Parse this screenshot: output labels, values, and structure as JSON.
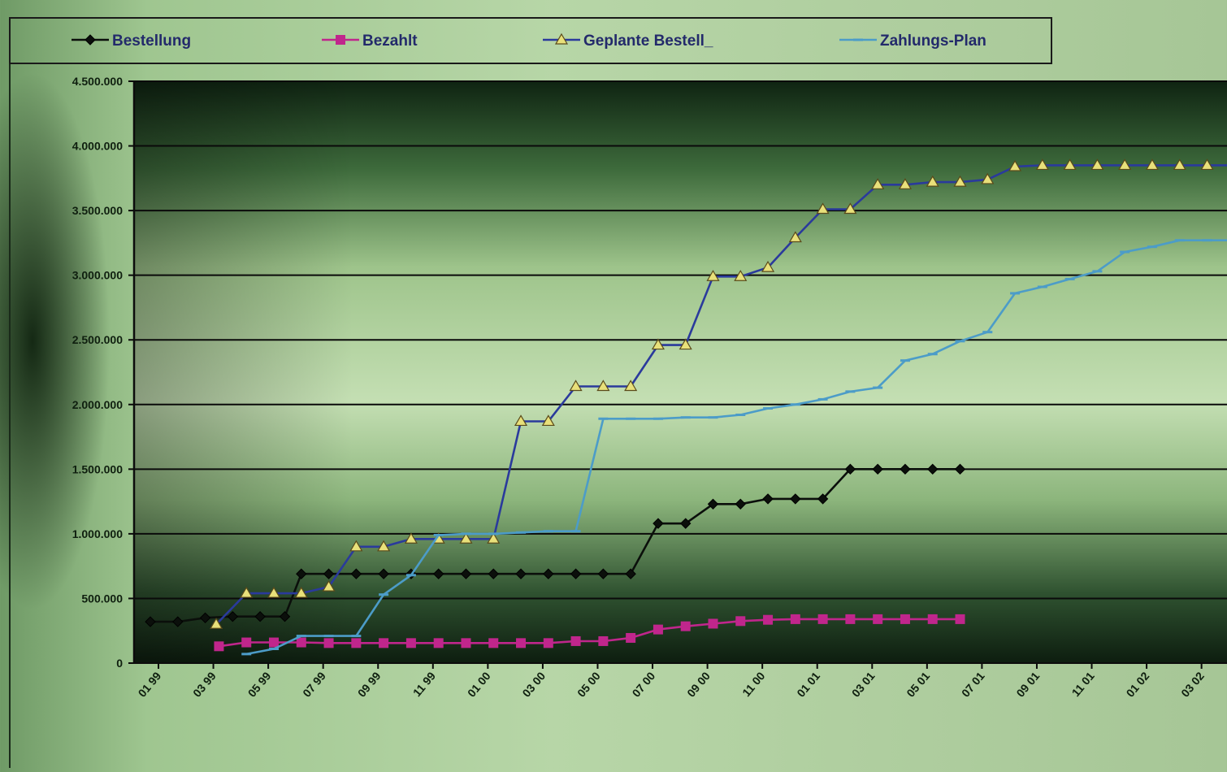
{
  "chart_data": {
    "type": "line",
    "legend_position": "top",
    "grid": true,
    "ylim": [
      0,
      4500000
    ],
    "y_ticks": [
      "0",
      "500.000",
      "1.000.000",
      "1.500.000",
      "2.000.000",
      "2.500.000",
      "3.000.000",
      "3.500.000",
      "4.000.000",
      "4.500.000"
    ],
    "x_ticks": [
      {
        "i": 0,
        "label": "01 99"
      },
      {
        "i": 2,
        "label": "03 99"
      },
      {
        "i": 4,
        "label": "05 99"
      },
      {
        "i": 6,
        "label": "07 99"
      },
      {
        "i": 8,
        "label": "09 99"
      },
      {
        "i": 10,
        "label": "11 99"
      },
      {
        "i": 12,
        "label": "01 00"
      },
      {
        "i": 14,
        "label": "03 00"
      },
      {
        "i": 16,
        "label": "05 00"
      },
      {
        "i": 18,
        "label": "07 00"
      },
      {
        "i": 20,
        "label": "09 00"
      },
      {
        "i": 22,
        "label": "11 00"
      },
      {
        "i": 24,
        "label": "01 01"
      },
      {
        "i": 26,
        "label": "03 01"
      },
      {
        "i": 28,
        "label": "05 01"
      },
      {
        "i": 30,
        "label": "07 01"
      },
      {
        "i": 32,
        "label": "09 01"
      },
      {
        "i": 34,
        "label": "11 01"
      },
      {
        "i": 36,
        "label": "01 02"
      },
      {
        "i": 38,
        "label": "03 02"
      }
    ],
    "series": [
      {
        "name": "Bestellung",
        "color": "#0b0f0b",
        "marker": "diamond",
        "points": [
          [
            0,
            320000
          ],
          [
            1,
            320000
          ],
          [
            2,
            350000
          ],
          [
            3,
            360000
          ],
          [
            4,
            360000
          ],
          [
            4.9,
            360000
          ],
          [
            5.5,
            690000
          ],
          [
            6.5,
            690000
          ],
          [
            7.5,
            690000
          ],
          [
            8.5,
            690000
          ],
          [
            9.5,
            690000
          ],
          [
            10.5,
            690000
          ],
          [
            11.5,
            690000
          ],
          [
            12.5,
            690000
          ],
          [
            13.5,
            690000
          ],
          [
            14.5,
            690000
          ],
          [
            15.5,
            690000
          ],
          [
            16.5,
            690000
          ],
          [
            17.5,
            690000
          ],
          [
            18.5,
            1080000
          ],
          [
            19.5,
            1080000
          ],
          [
            20.5,
            1230000
          ],
          [
            21.5,
            1230000
          ],
          [
            22.5,
            1270000
          ],
          [
            23.5,
            1270000
          ],
          [
            24.5,
            1270000
          ],
          [
            25.5,
            1500000
          ],
          [
            26.5,
            1500000
          ],
          [
            27.5,
            1500000
          ],
          [
            28.5,
            1500000
          ],
          [
            29.5,
            1500000
          ]
        ]
      },
      {
        "name": "Bezahlt",
        "color": "#c0268c",
        "marker": "square",
        "points": [
          [
            2.5,
            130000
          ],
          [
            3.5,
            160000
          ],
          [
            4.5,
            160000
          ],
          [
            5.5,
            160000
          ],
          [
            6.5,
            155000
          ],
          [
            7.5,
            155000
          ],
          [
            8.5,
            155000
          ],
          [
            9.5,
            155000
          ],
          [
            10.5,
            155000
          ],
          [
            11.5,
            155000
          ],
          [
            12.5,
            155000
          ],
          [
            13.5,
            155000
          ],
          [
            14.5,
            155000
          ],
          [
            15.5,
            170000
          ],
          [
            16.5,
            170000
          ],
          [
            17.5,
            195000
          ],
          [
            18.5,
            260000
          ],
          [
            19.5,
            285000
          ],
          [
            20.5,
            305000
          ],
          [
            21.5,
            325000
          ],
          [
            22.5,
            335000
          ],
          [
            23.5,
            340000
          ],
          [
            24.5,
            340000
          ],
          [
            25.5,
            340000
          ],
          [
            26.5,
            340000
          ],
          [
            27.5,
            340000
          ],
          [
            28.5,
            340000
          ],
          [
            29.5,
            340000
          ]
        ]
      },
      {
        "name": "Geplante Bestell_",
        "color": "#2a3a9c",
        "marker": "triangle",
        "points": [
          [
            2.4,
            300000
          ],
          [
            3.5,
            540000
          ],
          [
            4.5,
            540000
          ],
          [
            5.5,
            540000
          ],
          [
            6.5,
            590000
          ],
          [
            7.5,
            900000
          ],
          [
            8.5,
            900000
          ],
          [
            9.5,
            960000
          ],
          [
            10.5,
            960000
          ],
          [
            11.5,
            960000
          ],
          [
            12.5,
            960000
          ],
          [
            13.5,
            1870000
          ],
          [
            14.5,
            1870000
          ],
          [
            15.5,
            2140000
          ],
          [
            16.5,
            2140000
          ],
          [
            17.5,
            2140000
          ],
          [
            18.5,
            2460000
          ],
          [
            19.5,
            2460000
          ],
          [
            20.5,
            2990000
          ],
          [
            21.5,
            2990000
          ],
          [
            22.5,
            3060000
          ],
          [
            23.5,
            3290000
          ],
          [
            24.5,
            3510000
          ],
          [
            25.5,
            3510000
          ],
          [
            26.5,
            3700000
          ],
          [
            27.5,
            3700000
          ],
          [
            28.5,
            3720000
          ],
          [
            29.5,
            3720000
          ],
          [
            30.5,
            3740000
          ],
          [
            31.5,
            3840000
          ],
          [
            32.5,
            3850000
          ],
          [
            33.5,
            3850000
          ],
          [
            34.5,
            3850000
          ],
          [
            35.5,
            3850000
          ],
          [
            36.5,
            3850000
          ],
          [
            37.5,
            3850000
          ],
          [
            38.5,
            3850000
          ],
          [
            39.5,
            3850000
          ]
        ]
      },
      {
        "name": "Zahlungs-Plan",
        "color": "#4c9cc8",
        "marker": "dash",
        "points": [
          [
            3.5,
            70000
          ],
          [
            4.5,
            110000
          ],
          [
            5.5,
            210000
          ],
          [
            6.5,
            210000
          ],
          [
            7.5,
            210000
          ],
          [
            8.5,
            530000
          ],
          [
            9.5,
            680000
          ],
          [
            10.5,
            990000
          ],
          [
            11.5,
            1000000
          ],
          [
            12.5,
            1000000
          ],
          [
            13.5,
            1010000
          ],
          [
            14.5,
            1020000
          ],
          [
            15.5,
            1020000
          ],
          [
            16.5,
            1890000
          ],
          [
            17.5,
            1890000
          ],
          [
            18.5,
            1890000
          ],
          [
            19.5,
            1900000
          ],
          [
            20.5,
            1900000
          ],
          [
            21.5,
            1920000
          ],
          [
            22.5,
            1970000
          ],
          [
            23.5,
            2000000
          ],
          [
            24.5,
            2040000
          ],
          [
            25.5,
            2100000
          ],
          [
            26.5,
            2130000
          ],
          [
            27.5,
            2340000
          ],
          [
            28.5,
            2390000
          ],
          [
            29.5,
            2490000
          ],
          [
            30.5,
            2560000
          ],
          [
            31.5,
            2860000
          ],
          [
            32.5,
            2910000
          ],
          [
            33.5,
            2970000
          ],
          [
            34.5,
            3030000
          ],
          [
            35.5,
            3180000
          ],
          [
            36.5,
            3220000
          ],
          [
            37.5,
            3270000
          ],
          [
            38.5,
            3270000
          ],
          [
            39.5,
            3270000
          ]
        ]
      }
    ]
  }
}
